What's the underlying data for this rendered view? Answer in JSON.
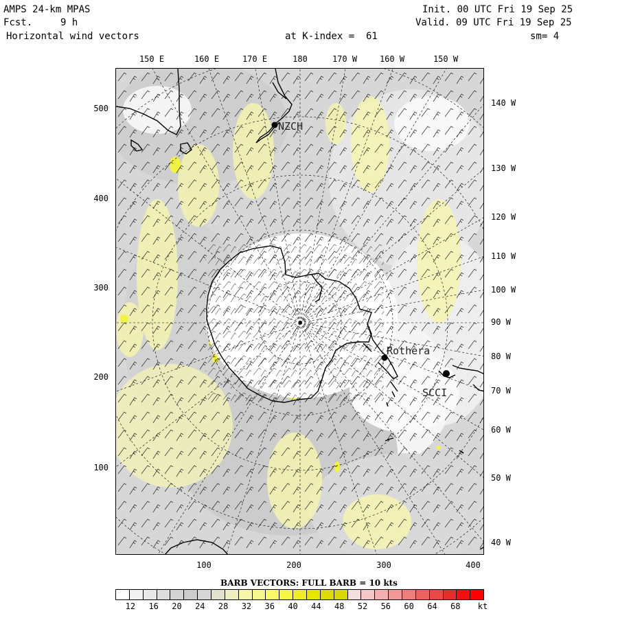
{
  "header": {
    "model": "AMPS 24-km MPAS",
    "fcst_label": "Fcst.",
    "fcst_hours": "9 h",
    "variable": "Horizontal wind vectors",
    "level_text": "at K-index =  61",
    "init_text": "Init. 00 UTC Fri 19 Sep 25",
    "valid_text": "Valid. 09 UTC Fri 19 Sep 25",
    "smoothing_text": "sm= 4"
  },
  "axes": {
    "top_longitudes": [
      "150 E",
      "160 E",
      "170 E",
      "180",
      "170 W",
      "160 W",
      "150 W"
    ],
    "right_longitudes": [
      "140 W",
      "130 W",
      "120 W",
      "110 W",
      "100 W",
      "90 W",
      "80 W",
      "70 W",
      "60 W",
      "50 W",
      "40 W"
    ],
    "left_ticks": [
      "500",
      "400",
      "300",
      "200",
      "100"
    ],
    "bottom_ticks": [
      "100",
      "200",
      "300",
      "400"
    ]
  },
  "stations": [
    {
      "id": "NZCH"
    },
    {
      "id": "Rothera"
    },
    {
      "id": "SCCI"
    }
  ],
  "caption": "BARB VECTORS:  FULL BARB = 10 kts",
  "colorbar": {
    "unit": "kt",
    "tick_labels": [
      "12",
      "16",
      "20",
      "24",
      "28",
      "32",
      "36",
      "40",
      "44",
      "48",
      "52",
      "56",
      "60",
      "64",
      "68"
    ],
    "colors": [
      "#ffffff",
      "#f2f2f2",
      "#e8e8e8",
      "#dedede",
      "#d4d4d4",
      "#cccccc",
      "#d6d6d6",
      "#e2e2cc",
      "#eeeec0",
      "#f6f6a8",
      "#f8f88a",
      "#fafa66",
      "#f6f640",
      "#eeee22",
      "#e6e600",
      "#dcdc00",
      "#d8d800",
      "#f4dede",
      "#f4c8c8",
      "#f2b0b0",
      "#f09898",
      "#ee7e7e",
      "#ec6262",
      "#ea4848",
      "#e82c2c",
      "#f01010",
      "#ff0000"
    ]
  }
}
